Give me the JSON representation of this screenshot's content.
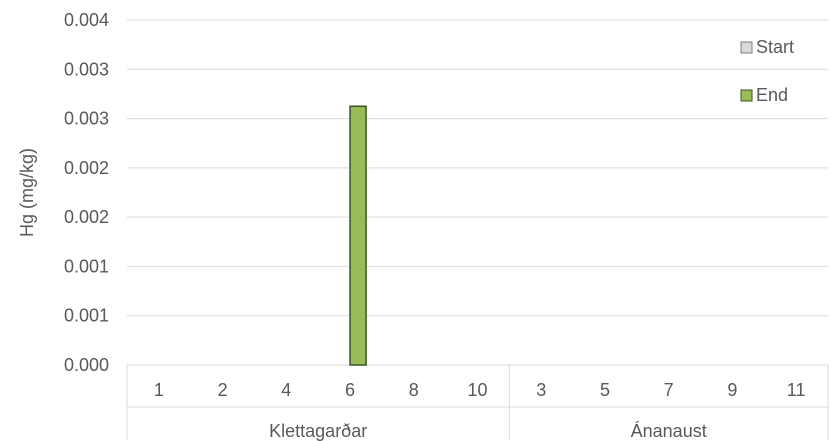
{
  "chart_data": {
    "type": "bar",
    "title": "",
    "xlabel": "",
    "ylabel": "Hg (mg/kg)",
    "ylim": [
      0,
      0.004
    ],
    "y_ticks": [
      "0.000",
      "0.001",
      "0.001",
      "0.002",
      "0.002",
      "0.003",
      "0.003",
      "0.004"
    ],
    "grid": true,
    "legend_position": "top-right",
    "groups": [
      {
        "name": "Klettagarðar",
        "categories": [
          "1",
          "2",
          "4",
          "6",
          "8",
          "10"
        ]
      },
      {
        "name": "Ánanaust",
        "categories": [
          "3",
          "5",
          "7",
          "9",
          "11"
        ]
      }
    ],
    "categories": [
      "1",
      "2",
      "4",
      "6",
      "8",
      "10",
      "3",
      "5",
      "7",
      "9",
      "11"
    ],
    "series": [
      {
        "name": "Start",
        "color": "#d9d9d9",
        "edge_color": "#7f7f7f",
        "values": [
          0,
          0,
          0,
          0,
          0,
          0,
          0,
          0,
          0,
          0,
          0
        ]
      },
      {
        "name": "End",
        "color": "#9bbb59",
        "edge_color": "#375623",
        "values": [
          0,
          0,
          0,
          0.003,
          0,
          0,
          0,
          0,
          0,
          0,
          0
        ]
      }
    ],
    "colors": {
      "gridline": "#d9d9d9",
      "text": "#595959"
    }
  }
}
